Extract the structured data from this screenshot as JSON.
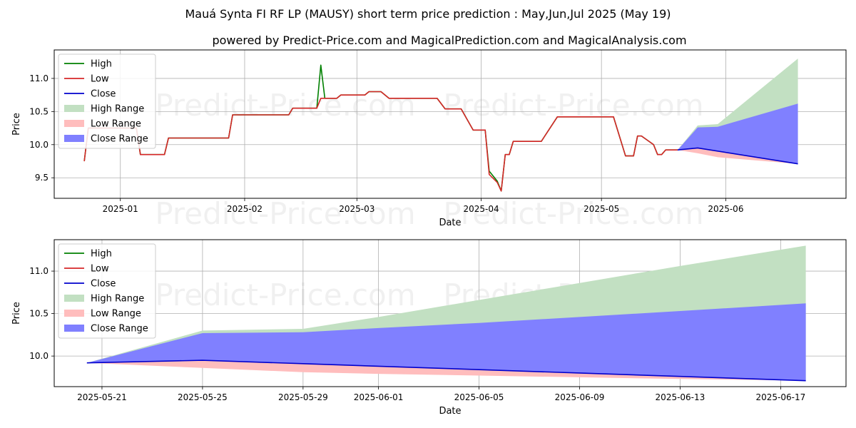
{
  "page": {
    "title": "Mauá Synta FI RF LP (MAUSY) short term price prediction : May,Jun,Jul 2025 (May 19)",
    "subtitle": "powered by Predict-Price.com and MagicalPrediction.com and MagicalAnalysis.com",
    "watermark": "Predict-Price.com"
  },
  "colors": {
    "high": "#008000",
    "low": "#d62728",
    "close": "#0000cd",
    "high_range": "#c2e0c2",
    "low_range": "#ffbdbd",
    "close_range": "#8080ff",
    "grid": "#b0b0b0"
  },
  "chart_data": [
    {
      "type": "line",
      "id": "history",
      "xlabel": "Date",
      "ylabel": "Price",
      "xlim": [
        -16.5,
        181
      ],
      "ylim": [
        9.19,
        11.43
      ],
      "x_ticks": [
        {
          "label": "2025-01",
          "x": 0
        },
        {
          "label": "2025-02",
          "x": 31
        },
        {
          "label": "2025-03",
          "x": 59
        },
        {
          "label": "2025-04",
          "x": 90
        },
        {
          "label": "2025-05",
          "x": 120
        },
        {
          "label": "2025-06",
          "x": 151
        }
      ],
      "y_ticks": [
        9.5,
        10.0,
        10.5,
        11.0
      ],
      "legend": [
        "High",
        "Low",
        "Close",
        "High Range",
        "Low Range",
        "Close Range"
      ],
      "legend_position": "upper-left",
      "x_axis_note": "x = days since 2025-01-01",
      "series": [
        {
          "name": "Low",
          "points": [
            [
              -9,
              9.75
            ],
            [
              -8,
              10.25
            ],
            [
              4,
              10.25
            ],
            [
              5,
              9.85
            ],
            [
              11,
              9.85
            ],
            [
              12,
              10.1
            ],
            [
              27,
              10.1
            ],
            [
              28,
              10.45
            ],
            [
              42,
              10.45
            ],
            [
              43,
              10.55
            ],
            [
              49,
              10.55
            ],
            [
              50,
              10.7
            ],
            [
              54,
              10.7
            ],
            [
              55,
              10.75
            ],
            [
              61,
              10.75
            ],
            [
              62,
              10.8
            ],
            [
              65,
              10.8
            ],
            [
              67,
              10.7
            ],
            [
              79,
              10.7
            ],
            [
              81,
              10.54
            ],
            [
              85,
              10.54
            ],
            [
              88,
              10.22
            ],
            [
              91,
              10.22
            ],
            [
              92,
              9.55
            ],
            [
              94,
              9.43
            ],
            [
              95,
              9.3
            ],
            [
              96,
              9.85
            ],
            [
              97,
              9.85
            ],
            [
              98,
              10.05
            ],
            [
              105,
              10.05
            ],
            [
              109,
              10.42
            ],
            [
              123,
              10.42
            ],
            [
              126,
              9.83
            ],
            [
              128,
              9.83
            ],
            [
              129,
              10.13
            ],
            [
              130,
              10.13
            ],
            [
              133,
              10.0
            ],
            [
              134,
              9.85
            ],
            [
              135,
              9.85
            ],
            [
              136,
              9.92
            ],
            [
              139,
              9.92
            ]
          ]
        },
        {
          "name": "High",
          "points": [
            [
              -9,
              9.75
            ],
            [
              -8,
              10.25
            ],
            [
              4,
              10.25
            ],
            [
              5,
              9.85
            ],
            [
              11,
              9.85
            ],
            [
              12,
              10.1
            ],
            [
              27,
              10.1
            ],
            [
              28,
              10.45
            ],
            [
              42,
              10.45
            ],
            [
              43,
              10.55
            ],
            [
              49,
              10.55
            ],
            [
              50,
              11.2
            ],
            [
              51,
              10.7
            ],
            [
              54,
              10.7
            ],
            [
              55,
              10.75
            ],
            [
              61,
              10.75
            ],
            [
              62,
              10.8
            ],
            [
              65,
              10.8
            ],
            [
              67,
              10.7
            ],
            [
              79,
              10.7
            ],
            [
              81,
              10.54
            ],
            [
              85,
              10.54
            ],
            [
              88,
              10.22
            ],
            [
              91,
              10.22
            ],
            [
              92,
              9.6
            ],
            [
              94,
              9.45
            ],
            [
              95,
              9.3
            ],
            [
              96,
              9.85
            ],
            [
              97,
              9.85
            ],
            [
              98,
              10.05
            ],
            [
              105,
              10.05
            ],
            [
              109,
              10.42
            ],
            [
              123,
              10.42
            ],
            [
              126,
              9.83
            ],
            [
              128,
              9.83
            ],
            [
              129,
              10.13
            ],
            [
              130,
              10.13
            ],
            [
              133,
              10.0
            ],
            [
              134,
              9.85
            ],
            [
              135,
              9.85
            ],
            [
              136,
              9.92
            ],
            [
              139,
              9.92
            ]
          ]
        },
        {
          "name": "Close",
          "points": [
            [
              139,
              9.92
            ],
            [
              144,
              9.95
            ],
            [
              169,
              9.71
            ]
          ]
        },
        {
          "name": "High Range",
          "upper": [
            [
              139,
              9.92
            ],
            [
              144,
              10.29
            ],
            [
              149,
              10.31
            ],
            [
              169,
              11.3
            ]
          ],
          "lower": [
            [
              139,
              9.92
            ],
            [
              144,
              9.95
            ],
            [
              169,
              9.71
            ]
          ]
        },
        {
          "name": "Low Range",
          "upper": [
            [
              139,
              9.92
            ],
            [
              144,
              9.95
            ],
            [
              169,
              9.71
            ]
          ],
          "lower": [
            [
              139,
              9.92
            ],
            [
              144,
              9.87
            ],
            [
              149,
              9.81
            ],
            [
              169,
              9.71
            ]
          ]
        },
        {
          "name": "Close Range",
          "upper": [
            [
              139,
              9.92
            ],
            [
              144,
              10.26
            ],
            [
              149,
              10.27
            ],
            [
              169,
              10.62
            ]
          ],
          "lower": [
            [
              139,
              9.92
            ],
            [
              144,
              9.95
            ],
            [
              169,
              9.71
            ]
          ]
        }
      ]
    },
    {
      "type": "line",
      "id": "forecast",
      "xlabel": "Date",
      "ylabel": "Price",
      "xlim": [
        18.1,
        49.6
      ],
      "ylim": [
        9.64,
        11.37
      ],
      "x_ticks": [
        {
          "label": "2025-05-21",
          "x": 20
        },
        {
          "label": "2025-05-25",
          "x": 24
        },
        {
          "label": "2025-05-29",
          "x": 28
        },
        {
          "label": "2025-06-01",
          "x": 31
        },
        {
          "label": "2025-06-05",
          "x": 35
        },
        {
          "label": "2025-06-09",
          "x": 39
        },
        {
          "label": "2025-06-13",
          "x": 43
        },
        {
          "label": "2025-06-17",
          "x": 47
        }
      ],
      "y_ticks": [
        10.0,
        10.5,
        11.0
      ],
      "legend": [
        "High",
        "Low",
        "Close",
        "High Range",
        "Low Range",
        "Close Range"
      ],
      "legend_position": "upper-left",
      "x_axis_note": "x = days since 2025-05-01",
      "series": [
        {
          "name": "Close",
          "points": [
            [
              19.4,
              9.92
            ],
            [
              24,
              9.95
            ],
            [
              28,
              9.91
            ],
            [
              31,
              9.88
            ],
            [
              35,
              9.84
            ],
            [
              39,
              9.8
            ],
            [
              43,
              9.76
            ],
            [
              48,
              9.71
            ]
          ]
        },
        {
          "name": "High Range",
          "upper": [
            [
              19.4,
              9.92
            ],
            [
              24,
              10.3
            ],
            [
              28,
              10.32
            ],
            [
              31,
              10.46
            ],
            [
              35,
              10.66
            ],
            [
              39,
              10.86
            ],
            [
              43,
              11.06
            ],
            [
              48,
              11.3
            ]
          ],
          "lower": [
            [
              19.4,
              9.92
            ],
            [
              24,
              9.95
            ],
            [
              28,
              9.91
            ],
            [
              31,
              9.88
            ],
            [
              35,
              9.84
            ],
            [
              39,
              9.8
            ],
            [
              43,
              9.76
            ],
            [
              48,
              9.71
            ]
          ]
        },
        {
          "name": "Low Range",
          "upper": [
            [
              19.4,
              9.92
            ],
            [
              24,
              9.95
            ],
            [
              28,
              9.91
            ],
            [
              31,
              9.88
            ],
            [
              35,
              9.84
            ],
            [
              39,
              9.8
            ],
            [
              43,
              9.76
            ],
            [
              48,
              9.71
            ]
          ],
          "lower": [
            [
              19.4,
              9.92
            ],
            [
              24,
              9.86
            ],
            [
              28,
              9.81
            ],
            [
              31,
              9.79
            ],
            [
              35,
              9.77
            ],
            [
              39,
              9.75
            ],
            [
              43,
              9.73
            ],
            [
              48,
              9.71
            ]
          ]
        },
        {
          "name": "Close Range",
          "upper": [
            [
              19.4,
              9.92
            ],
            [
              24,
              10.27
            ],
            [
              28,
              10.28
            ],
            [
              31,
              10.33
            ],
            [
              35,
              10.39
            ],
            [
              39,
              10.46
            ],
            [
              43,
              10.53
            ],
            [
              48,
              10.62
            ]
          ],
          "lower": [
            [
              19.4,
              9.92
            ],
            [
              24,
              9.95
            ],
            [
              28,
              9.91
            ],
            [
              31,
              9.88
            ],
            [
              35,
              9.84
            ],
            [
              39,
              9.8
            ],
            [
              43,
              9.76
            ],
            [
              48,
              9.71
            ]
          ]
        }
      ]
    }
  ]
}
